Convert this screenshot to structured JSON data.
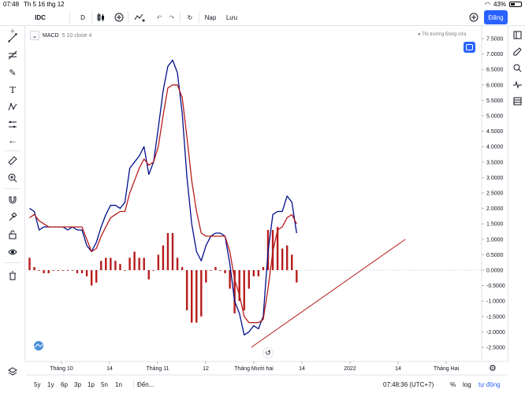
{
  "status_bar": {
    "time": "07:48",
    "date": "Th 5 16 thg 12",
    "battery": "43%"
  },
  "toolbar": {
    "symbol": "IDC",
    "interval": "D",
    "load_label": "Nạp",
    "save_label": "Lưu",
    "publish_label": "Đăng"
  },
  "legend": {
    "indicator": "MACD",
    "params": "5 10 close 4"
  },
  "market_status": "Thị trường Đóng cửa",
  "chart_data": {
    "type": "line",
    "title": "",
    "x_ticks": [
      "Tháng 10",
      "14",
      "Tháng 11",
      "12",
      "Tháng Mười hai",
      "14",
      "2022",
      "14",
      "Tháng Hai"
    ],
    "y_ticks": [
      "7.5000",
      "7.0000",
      "6.5000",
      "6.0000",
      "5.5000",
      "5.0000",
      "4.5000",
      "4.0000",
      "3.5000",
      "3.0000",
      "2.5000",
      "2.0000",
      "1.5000",
      "1.0000",
      "0.5000",
      "0.0000",
      "-0.5000",
      "-1.0000",
      "-1.5000",
      "-2.0000",
      "-2.5000"
    ],
    "ylim": [
      -2.5,
      7.5
    ],
    "series": [
      {
        "name": "MACD",
        "color": "#000e8a",
        "values": [
          2.0,
          1.9,
          1.3,
          1.4,
          1.4,
          1.4,
          1.4,
          1.4,
          1.3,
          1.4,
          1.3,
          1.3,
          0.8,
          0.6,
          0.9,
          1.4,
          1.8,
          2.1,
          2.1,
          2.0,
          2.2,
          3.3,
          3.5,
          3.7,
          4.0,
          3.1,
          3.5,
          4.6,
          5.8,
          6.6,
          6.8,
          6.4,
          5.1,
          3.0,
          1.5,
          0.6,
          0.3,
          0.8,
          1.1,
          1.2,
          1.2,
          1.1,
          0.2,
          -1.0,
          -1.4,
          -2.1,
          -2.0,
          -1.8,
          -1.9,
          -1.5,
          0.6,
          1.8,
          1.9,
          1.9,
          2.4,
          2.2,
          1.2
        ]
      },
      {
        "name": "Signal",
        "color": "#b71c1c",
        "values": [
          1.7,
          1.8,
          1.6,
          1.5,
          1.4,
          1.4,
          1.4,
          1.4,
          1.4,
          1.4,
          1.4,
          1.4,
          1.0,
          0.6,
          0.7,
          1.1,
          1.4,
          1.7,
          1.8,
          1.9,
          1.9,
          2.5,
          2.9,
          3.3,
          3.6,
          3.4,
          3.5,
          4.0,
          5.0,
          5.9,
          6.0,
          6.0,
          5.6,
          4.3,
          2.9,
          1.9,
          1.2,
          1.1,
          1.1,
          1.1,
          1.1,
          1.1,
          0.6,
          -0.3,
          -0.8,
          -1.5,
          -1.7,
          -1.7,
          -1.7,
          -1.6,
          -0.6,
          0.6,
          1.3,
          1.4,
          1.7,
          1.8,
          1.5
        ]
      }
    ],
    "histogram": {
      "color": "#b71c1c",
      "values": [
        0.4,
        0.1,
        0.0,
        -0.1,
        -0.1,
        0.0,
        0.0,
        0.0,
        0.0,
        0.0,
        -0.1,
        -0.1,
        -0.2,
        -0.5,
        -0.4,
        0.3,
        0.4,
        0.4,
        0.3,
        0.2,
        0.0,
        0.4,
        0.6,
        0.4,
        0.4,
        -0.3,
        0.0,
        0.5,
        0.8,
        1.2,
        1.2,
        0.4,
        0.1,
        -1.3,
        -1.7,
        -1.7,
        -1.5,
        -0.4,
        0.0,
        0.1,
        0.0,
        -0.1,
        -0.6,
        -1.4,
        -1.0,
        -1.3,
        -0.6,
        -0.2,
        -0.2,
        0.1,
        1.3,
        1.3,
        1.4,
        0.7,
        0.8,
        0.5,
        -0.4
      ]
    },
    "trendline": {
      "from": {
        "index": 46.5,
        "value": -2.5
      },
      "to": {
        "index": 78.8,
        "value": 1.0
      },
      "color": "#b71c1c"
    }
  },
  "bottom_bar": {
    "ranges": [
      "5y",
      "1y",
      "6p",
      "3p",
      "1p",
      "5n",
      "1n"
    ],
    "goto_label": "Đến...",
    "clock": "07:48:36 (UTC+7)",
    "pct_label": "%",
    "log_label": "log",
    "auto_label": "tự động"
  }
}
